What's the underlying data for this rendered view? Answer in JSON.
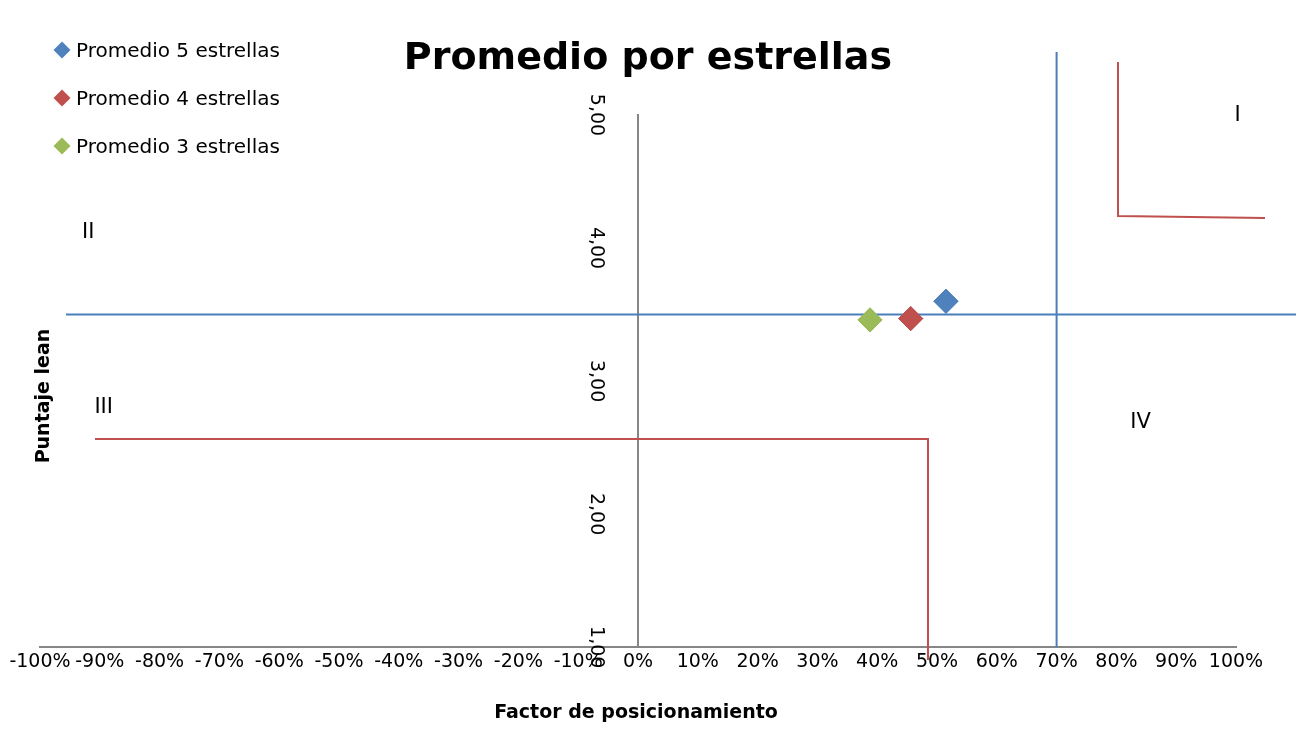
{
  "chart_data": {
    "type": "scatter",
    "title": "Promedio por estrellas",
    "xlabel": "Factor de posicionamiento",
    "ylabel": "Puntaje lean",
    "series": [
      {
        "name": "Promedio 5 estrellas",
        "color": "#4f81bd",
        "x": [
          51.5
        ],
        "values": [
          3.6
        ]
      },
      {
        "name": "Promedio 4 estrellas",
        "color": "#c0504d",
        "x": [
          45.6
        ],
        "values": [
          3.47
        ]
      },
      {
        "name": "Promedio 3 estrellas",
        "color": "#9bbb59",
        "x": [
          38.8
        ],
        "values": [
          3.46
        ]
      }
    ],
    "xlim": [
      -100,
      100
    ],
    "xticks": [
      {
        "value": -100,
        "label": "-100%"
      },
      {
        "value": -90,
        "label": "-90%"
      },
      {
        "value": -80,
        "label": "-80%"
      },
      {
        "value": -70,
        "label": "-70%"
      },
      {
        "value": -60,
        "label": "-60%"
      },
      {
        "value": -50,
        "label": "-50%"
      },
      {
        "value": -40,
        "label": "-40%"
      },
      {
        "value": -30,
        "label": "-30%"
      },
      {
        "value": -20,
        "label": "-20%"
      },
      {
        "value": -10,
        "label": "-10%"
      },
      {
        "value": 0,
        "label": "0%"
      },
      {
        "value": 10,
        "label": "10%"
      },
      {
        "value": 20,
        "label": "20%"
      },
      {
        "value": 30,
        "label": "30%"
      },
      {
        "value": 40,
        "label": "40%"
      },
      {
        "value": 50,
        "label": "50%"
      },
      {
        "value": 60,
        "label": "60%"
      },
      {
        "value": 70,
        "label": "70%"
      },
      {
        "value": 80,
        "label": "80%"
      },
      {
        "value": 90,
        "label": "90%"
      },
      {
        "value": 100,
        "label": "100%"
      }
    ],
    "ylim": [
      1,
      5
    ],
    "yticks": [
      {
        "value": 1,
        "label": "1,00"
      },
      {
        "value": 2,
        "label": "2,00"
      },
      {
        "value": 3,
        "label": "3,00"
      },
      {
        "value": 4,
        "label": "4,00"
      },
      {
        "value": 5,
        "label": "5,00"
      }
    ],
    "ref_lines": [
      {
        "axis": "x",
        "value": 70,
        "color": "#4a7ebb"
      },
      {
        "axis": "y",
        "value": 3.5,
        "color": "#4a7ebb"
      }
    ],
    "annotations": [
      "I",
      "II",
      "III",
      "IV"
    ],
    "grid": false,
    "legend": "top left",
    "marker": "diamond"
  }
}
